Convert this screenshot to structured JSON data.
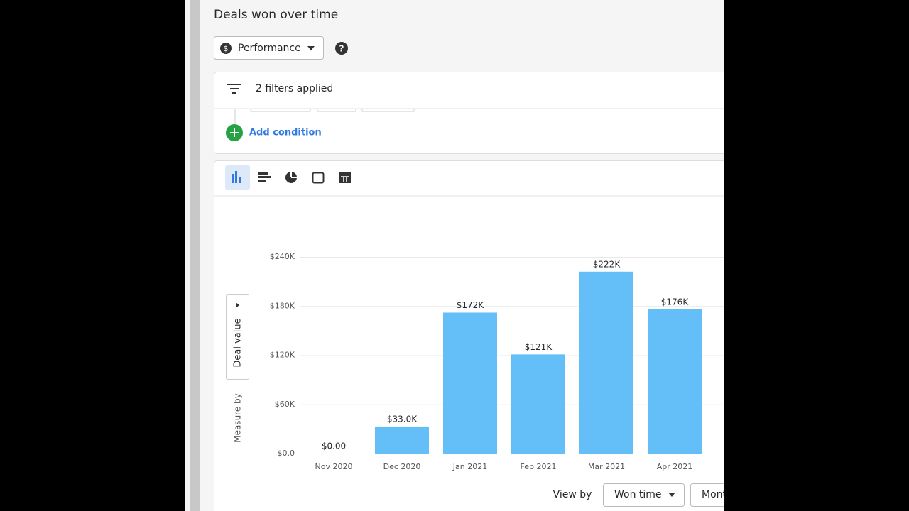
{
  "header": {
    "title": "Deals won over time"
  },
  "toolbar": {
    "dropdown": "Performance"
  },
  "filters": {
    "summary": "2 filters applied",
    "add_condition": "Add condition"
  },
  "chart_data": {
    "type": "bar",
    "categories": [
      "Nov 2020",
      "Dec 2020",
      "Jan 2021",
      "Feb 2021",
      "Mar 2021",
      "Apr 2021"
    ],
    "values": [
      0,
      33000,
      172000,
      121000,
      222000,
      176000
    ],
    "value_labels": [
      "$0.00",
      "$33.0K",
      "$172K",
      "$121K",
      "$222K",
      "$176K"
    ],
    "color": "#64bff8",
    "ylim": [
      0,
      240000
    ],
    "yticks": [
      {
        "value": 0,
        "label": "$0.0"
      },
      {
        "value": 60000,
        "label": "$60K"
      },
      {
        "value": 120000,
        "label": "$120K"
      },
      {
        "value": 180000,
        "label": "$180K"
      },
      {
        "value": 240000,
        "label": "$240K"
      }
    ],
    "grid": true,
    "y_label": "Deal value",
    "y_label_prefix": "Measure by"
  },
  "footer": {
    "view_by_label": "View by",
    "view_by": "Won time",
    "interval": "Month"
  }
}
